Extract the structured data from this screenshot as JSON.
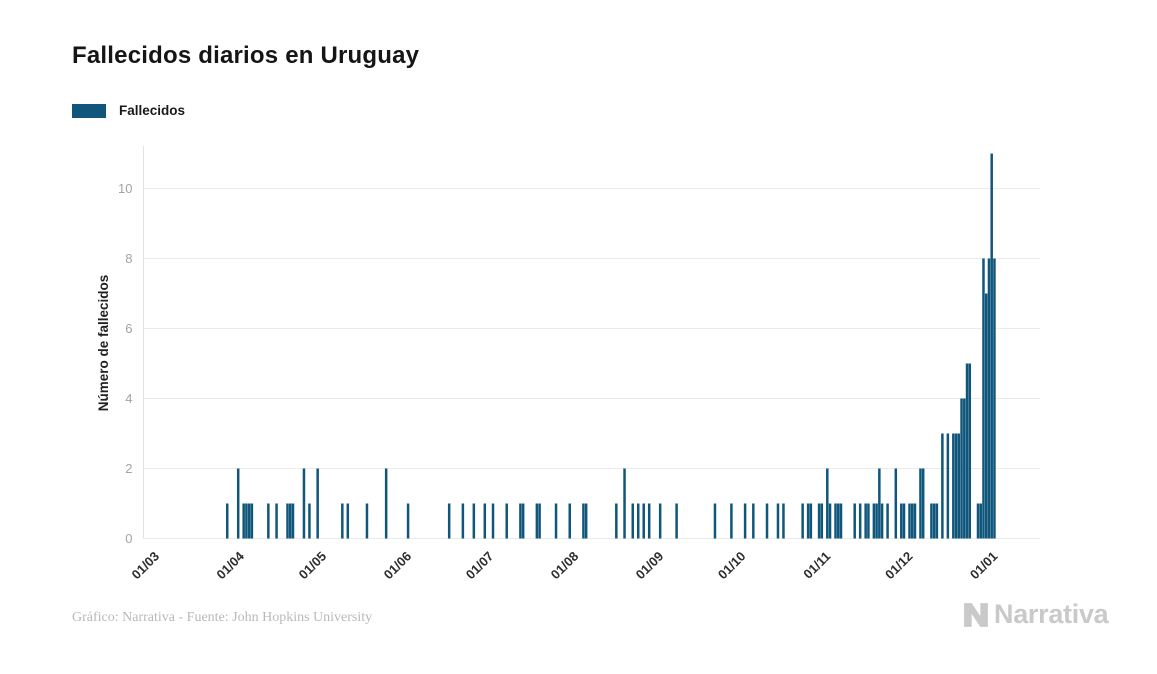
{
  "page": {
    "title": "Fallecidos diarios en Uruguay"
  },
  "legend": {
    "label": "Fallecidos"
  },
  "footer": {
    "credit": "Gráfico: Narrativa - Fuente: John Hopkins University"
  },
  "brand": {
    "name": "Narrativa"
  },
  "chart_data": {
    "type": "bar",
    "title": "Fallecidos diarios en Uruguay",
    "xlabel": "",
    "ylabel": "Número de fallecidos",
    "series_name": "Fallecidos",
    "bar_color": "#10567b",
    "grid_color": "#ebebeb",
    "axis_color": "#e2e2e2",
    "ylim": [
      0,
      11
    ],
    "yticks": [
      0,
      2,
      4,
      6,
      8,
      10
    ],
    "x_tick_labels": [
      "01/03",
      "01/04",
      "01/05",
      "01/06",
      "01/07",
      "01/08",
      "01/09",
      "01/10",
      "01/11",
      "01/12",
      "01/01"
    ],
    "x_tick_dates": [
      "2020-03-01",
      "2020-04-01",
      "2020-05-01",
      "2020-06-01",
      "2020-07-01",
      "2020-08-01",
      "2020-09-01",
      "2020-10-01",
      "2020-11-01",
      "2020-12-01",
      "2021-01-01"
    ],
    "date_range": [
      "2020-03-01",
      "2021-01-01"
    ],
    "daily_nonzero": {
      "2020-03-27": 1,
      "2020-03-31": 2,
      "2020-04-02": 1,
      "2020-04-03": 1,
      "2020-04-04": 1,
      "2020-04-05": 1,
      "2020-04-11": 1,
      "2020-04-14": 1,
      "2020-04-18": 1,
      "2020-04-19": 1,
      "2020-04-20": 1,
      "2020-04-24": 2,
      "2020-04-26": 1,
      "2020-04-29": 2,
      "2020-05-08": 1,
      "2020-05-10": 1,
      "2020-05-17": 1,
      "2020-05-24": 2,
      "2020-06-01": 1,
      "2020-06-16": 1,
      "2020-06-21": 1,
      "2020-06-25": 1,
      "2020-06-29": 1,
      "2020-07-02": 1,
      "2020-07-07": 1,
      "2020-07-12": 1,
      "2020-07-13": 1,
      "2020-07-18": 1,
      "2020-07-19": 1,
      "2020-07-25": 1,
      "2020-07-30": 1,
      "2020-08-04": 1,
      "2020-08-05": 1,
      "2020-08-16": 1,
      "2020-08-19": 2,
      "2020-08-22": 1,
      "2020-08-24": 1,
      "2020-08-26": 1,
      "2020-08-28": 1,
      "2020-09-01": 1,
      "2020-09-07": 1,
      "2020-09-21": 1,
      "2020-09-27": 1,
      "2020-10-02": 1,
      "2020-10-05": 1,
      "2020-10-10": 1,
      "2020-10-14": 1,
      "2020-10-16": 1,
      "2020-10-23": 1,
      "2020-10-25": 1,
      "2020-10-26": 1,
      "2020-10-29": 1,
      "2020-10-30": 1,
      "2020-11-01": 2,
      "2020-11-02": 1,
      "2020-11-04": 1,
      "2020-11-05": 1,
      "2020-11-06": 1,
      "2020-11-11": 1,
      "2020-11-13": 1,
      "2020-11-15": 1,
      "2020-11-16": 1,
      "2020-11-18": 1,
      "2020-11-19": 1,
      "2020-11-20": 2,
      "2020-11-21": 1,
      "2020-11-23": 1,
      "2020-11-26": 2,
      "2020-11-28": 1,
      "2020-11-29": 1,
      "2020-12-01": 1,
      "2020-12-02": 1,
      "2020-12-03": 1,
      "2020-12-05": 2,
      "2020-12-06": 2,
      "2020-12-09": 1,
      "2020-12-10": 1,
      "2020-12-11": 1,
      "2020-12-13": 3,
      "2020-12-15": 3,
      "2020-12-17": 3,
      "2020-12-18": 3,
      "2020-12-19": 3,
      "2020-12-20": 4,
      "2020-12-21": 4,
      "2020-12-22": 5,
      "2020-12-23": 5,
      "2020-12-26": 1,
      "2020-12-27": 1,
      "2020-12-28": 8,
      "2020-12-29": 7,
      "2020-12-30": 8,
      "2020-12-31": 11,
      "2021-01-01": 8
    }
  }
}
